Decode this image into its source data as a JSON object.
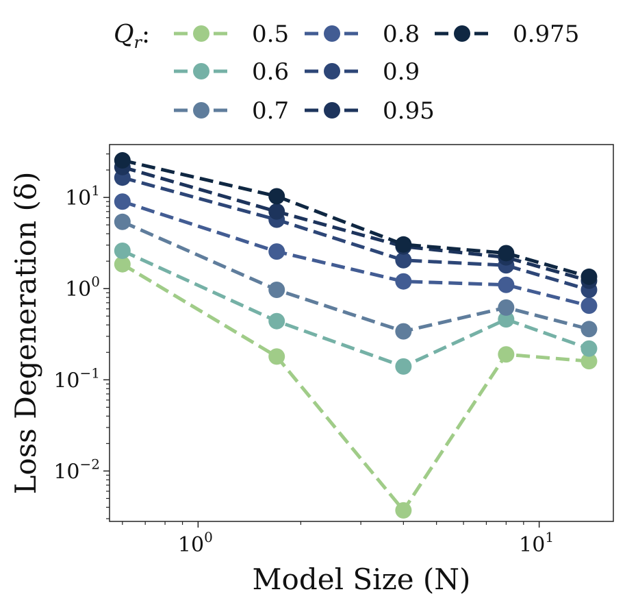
{
  "chart_data": {
    "type": "line",
    "title": "",
    "xlabel": "Model Size (N)",
    "ylabel": "Loss Degeneration (δ)",
    "xscale": "log",
    "yscale": "log",
    "xlim": [
      0.55,
      16.5
    ],
    "ylim": [
      0.0028,
      38
    ],
    "x": [
      0.6,
      1.7,
      4.0,
      8.0,
      14.0
    ],
    "x_ticks": [
      {
        "value": 1,
        "base": "10",
        "exp": "0"
      },
      {
        "value": 10,
        "base": "10",
        "exp": "1"
      }
    ],
    "y_ticks": [
      {
        "value": 0.01,
        "base": "10",
        "exp": "−2"
      },
      {
        "value": 0.1,
        "base": "10",
        "exp": "−1"
      },
      {
        "value": 1,
        "base": "10",
        "exp": "0"
      },
      {
        "value": 10,
        "base": "10",
        "exp": "1"
      }
    ],
    "legend": {
      "title_main": "Q",
      "title_sub": "r",
      "title_suffix": ":",
      "position": "top"
    },
    "series": [
      {
        "name": "0.5",
        "color": "#a0cc88",
        "values": [
          1.85,
          0.18,
          0.0037,
          0.19,
          0.16
        ]
      },
      {
        "name": "0.6",
        "color": "#75b1a6",
        "values": [
          2.6,
          0.44,
          0.14,
          0.46,
          0.22
        ]
      },
      {
        "name": "0.7",
        "color": "#5f7d9c",
        "values": [
          5.4,
          0.97,
          0.34,
          0.62,
          0.36
        ]
      },
      {
        "name": "0.8",
        "color": "#425c93",
        "values": [
          9.0,
          2.55,
          1.2,
          1.1,
          0.65
        ]
      },
      {
        "name": "0.9",
        "color": "#2d4677",
        "values": [
          16.5,
          5.7,
          2.05,
          1.8,
          0.97
        ]
      },
      {
        "name": "0.95",
        "color": "#1d345c",
        "values": [
          21.5,
          7.0,
          2.9,
          2.2,
          1.22
        ]
      },
      {
        "name": "0.975",
        "color": "#0f2742",
        "values": [
          25.5,
          10.3,
          3.05,
          2.45,
          1.35
        ]
      }
    ]
  }
}
